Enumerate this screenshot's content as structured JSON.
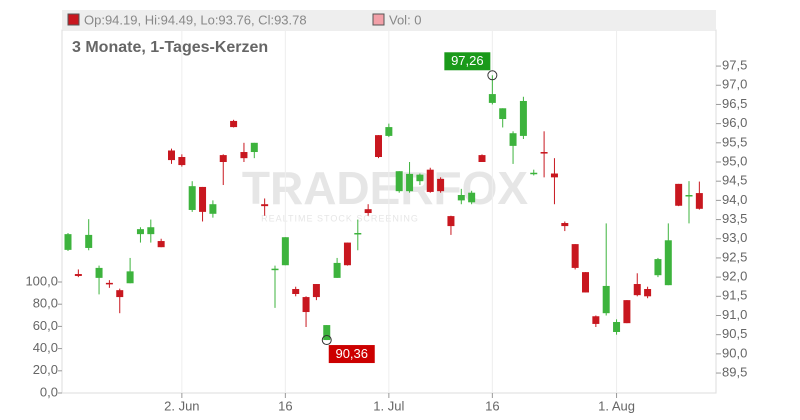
{
  "chart_data": {
    "type": "candlestick",
    "header": {
      "ohlc": "Op:94.19, Hi:94.49, Lo:93.76, Cl:93.78",
      "volume": "Vol: 0"
    },
    "subtitle": "3 Monate, 1-Tages-Kerzen",
    "watermark": {
      "title": "TRADERFOX",
      "subtitle": "REALTIME STOCK SCREENING"
    },
    "up_color": "#3db33d",
    "down_color": "#c8171f",
    "categories": [
      null,
      null,
      null,
      null,
      null,
      null,
      null,
      null,
      null,
      null,
      null,
      "2. Jun",
      null,
      null,
      null,
      null,
      null,
      null,
      null,
      null,
      null,
      "16",
      null,
      null,
      null,
      null,
      null,
      null,
      null,
      null,
      null,
      "1. Jul",
      null,
      null,
      null,
      null,
      null,
      null,
      null,
      null,
      null,
      "16",
      null,
      null,
      null,
      null,
      null,
      null,
      null,
      null,
      null,
      null,
      null,
      "1. Aug",
      null,
      null,
      null,
      null,
      null,
      null,
      null,
      null
    ],
    "open": [
      92.71,
      92.08,
      92.76,
      91.98,
      91.85,
      91.66,
      91.84,
      93.12,
      93.12,
      92.94,
      95.3,
      95.13,
      93.75,
      94.35,
      93.65,
      95.18,
      96.07,
      95.26,
      95.26,
      93.9,
      92.2,
      92.31,
      91.69,
      91.48,
      91.82,
      90.36,
      91.98,
      92.9,
      93.12,
      93.77,
      95.7,
      95.68,
      94.24,
      94.24,
      94.5,
      94.8,
      94.56,
      93.59,
      94.0,
      93.95,
      95.18,
      96.54,
      96.12,
      95.42,
      95.68,
      94.71,
      95.26,
      94.7,
      93.41,
      92.86,
      92.13,
      90.98,
      91.06,
      90.57,
      91.4,
      91.82,
      91.69,
      92.05,
      91.79,
      94.43,
      94.11,
      94.19
    ],
    "high": [
      93.15,
      92.2,
      93.51,
      92.3,
      91.92,
      91.7,
      92.5,
      93.3,
      93.5,
      93.0,
      95.35,
      95.2,
      94.5,
      94.35,
      94.0,
      95.2,
      96.1,
      95.5,
      95.5,
      94.05,
      92.3,
      93.04,
      91.75,
      91.5,
      91.82,
      90.75,
      92.5,
      92.9,
      93.5,
      93.9,
      95.7,
      96.0,
      94.76,
      95.0,
      94.7,
      94.85,
      94.6,
      93.6,
      94.3,
      94.25,
      95.2,
      97.26,
      96.4,
      95.8,
      96.7,
      94.8,
      95.8,
      95.1,
      93.45,
      92.86,
      92.13,
      91.0,
      93.4,
      90.9,
      91.4,
      92.1,
      91.75,
      92.5,
      93.4,
      94.43,
      94.5,
      94.49
    ],
    "low": [
      92.68,
      92.0,
      92.7,
      91.55,
      91.72,
      91.06,
      91.84,
      92.9,
      92.9,
      92.78,
      94.95,
      94.88,
      93.7,
      93.45,
      93.55,
      94.4,
      95.9,
      95.0,
      95.1,
      93.6,
      91.2,
      92.31,
      91.5,
      90.7,
      91.4,
      90.36,
      91.98,
      92.3,
      92.7,
      93.6,
      95.1,
      95.65,
      94.2,
      94.2,
      94.4,
      94.2,
      94.2,
      93.1,
      93.9,
      93.9,
      95.0,
      96.5,
      95.9,
      94.95,
      95.6,
      94.65,
      94.6,
      93.9,
      93.2,
      92.2,
      91.6,
      90.7,
      91.0,
      90.5,
      90.8,
      91.5,
      91.45,
      92.0,
      91.79,
      93.85,
      93.4,
      93.76
    ],
    "close": [
      93.12,
      92.03,
      93.1,
      92.24,
      91.82,
      91.48,
      92.15,
      93.25,
      93.3,
      92.78,
      95.05,
      94.92,
      94.37,
      93.7,
      93.9,
      95.0,
      95.91,
      95.1,
      95.5,
      93.85,
      92.22,
      93.04,
      91.56,
      91.09,
      91.48,
      90.75,
      92.37,
      92.31,
      93.15,
      93.67,
      95.13,
      95.91,
      94.76,
      94.69,
      94.67,
      94.22,
      94.24,
      93.33,
      94.14,
      94.2,
      95.0,
      96.77,
      96.4,
      95.75,
      96.59,
      94.72,
      95.22,
      94.6,
      93.33,
      92.24,
      91.6,
      90.78,
      91.77,
      90.83,
      90.8,
      91.53,
      91.5,
      92.47,
      92.96,
      93.86,
      94.14,
      93.78
    ],
    "ylim": [
      88.98,
      98.44
    ],
    "yticks": [
      {
        "value": 89.5,
        "label": "89,5"
      },
      {
        "value": 90,
        "label": "90,0"
      },
      {
        "value": 90.5,
        "label": "90,5"
      },
      {
        "value": 91,
        "label": "91,0"
      },
      {
        "value": 91.5,
        "label": "91,5"
      },
      {
        "value": 92,
        "label": "92,0"
      },
      {
        "value": 92.5,
        "label": "92,5"
      },
      {
        "value": 93,
        "label": "93,0"
      },
      {
        "value": 93.5,
        "label": "93,5"
      },
      {
        "value": 94,
        "label": "94,0"
      },
      {
        "value": 94.5,
        "label": "94,5"
      },
      {
        "value": 95,
        "label": "95,0"
      },
      {
        "value": 95.5,
        "label": "95,5"
      },
      {
        "value": 96,
        "label": "96,0"
      },
      {
        "value": 96.5,
        "label": "96,5"
      },
      {
        "value": 97,
        "label": "97,0"
      },
      {
        "value": 97.5,
        "label": "97,5"
      }
    ],
    "y2lim": [
      0,
      327
    ],
    "y2ticks": [
      {
        "value": 0,
        "label": "0,0"
      },
      {
        "value": 20,
        "label": "20,0"
      },
      {
        "value": 40,
        "label": "40,0"
      },
      {
        "value": 60,
        "label": "60,0"
      },
      {
        "value": 80,
        "label": "80,0"
      },
      {
        "value": 100,
        "label": "100,0"
      }
    ],
    "annotations": [
      {
        "label": "97,26",
        "value": 97.26,
        "color": "#1a9a1a"
      },
      {
        "label": "90,36",
        "value": 90.36,
        "color": "#cc0000"
      }
    ]
  }
}
